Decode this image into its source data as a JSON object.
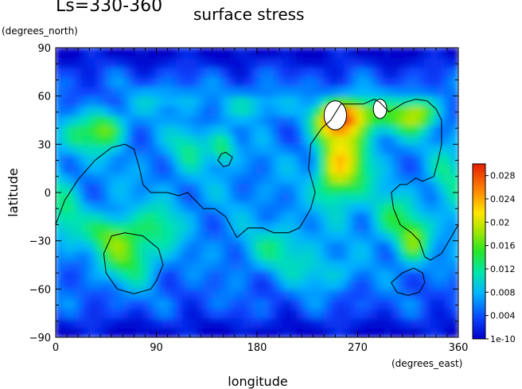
{
  "chart_data": {
    "type": "heatmap",
    "title": "Ls=330-360",
    "subtitle": "surface stress",
    "xlabel": "longitude",
    "ylabel": "latitude",
    "xunit": "(degrees_east)",
    "yunit": "(degrees_north)",
    "xlim": [
      0,
      360
    ],
    "ylim": [
      -90,
      90
    ],
    "xticks": [
      "0",
      "90",
      "180",
      "270",
      "360"
    ],
    "yticks": [
      "90",
      "60",
      "30",
      "0",
      "−30",
      "−60",
      "−90"
    ],
    "colorbar": {
      "labels": [
        "0.028",
        "0.024",
        "0.02",
        "0.016",
        "0.012",
        "0.008",
        "0.004",
        "1e-10"
      ],
      "min": 0,
      "max": 0.03
    },
    "hotspots": [
      {
        "lon": 250,
        "lat": 45,
        "amp": 0.018,
        "sx": 14,
        "sy": 8
      },
      {
        "lon": 270,
        "lat": 50,
        "amp": 0.014,
        "sx": 16,
        "sy": 7
      },
      {
        "lon": 262,
        "lat": 20,
        "amp": 0.013,
        "sx": 14,
        "sy": 16
      },
      {
        "lon": 248,
        "lat": 15,
        "amp": 0.009,
        "sx": 10,
        "sy": 14
      },
      {
        "lon": 325,
        "lat": 50,
        "amp": 0.014,
        "sx": 12,
        "sy": 7
      },
      {
        "lon": 305,
        "lat": 45,
        "amp": 0.007,
        "sx": 14,
        "sy": 8
      },
      {
        "lon": 45,
        "lat": 40,
        "amp": 0.012,
        "sx": 12,
        "sy": 8
      },
      {
        "lon": 20,
        "lat": 35,
        "amp": 0.006,
        "sx": 12,
        "sy": 8
      },
      {
        "lon": 150,
        "lat": 28,
        "amp": 0.009,
        "sx": 8,
        "sy": 7
      },
      {
        "lon": 120,
        "lat": 30,
        "amp": 0.006,
        "sx": 12,
        "sy": 10
      },
      {
        "lon": 65,
        "lat": -40,
        "amp": 0.01,
        "sx": 18,
        "sy": 12
      },
      {
        "lon": 50,
        "lat": -25,
        "amp": 0.008,
        "sx": 16,
        "sy": 8
      },
      {
        "lon": 95,
        "lat": -20,
        "amp": 0.006,
        "sx": 14,
        "sy": 10
      },
      {
        "lon": 320,
        "lat": -30,
        "amp": 0.012,
        "sx": 10,
        "sy": 10
      },
      {
        "lon": 300,
        "lat": -15,
        "amp": 0.007,
        "sx": 12,
        "sy": 10
      },
      {
        "lon": 200,
        "lat": -35,
        "amp": 0.006,
        "sx": 22,
        "sy": 10
      },
      {
        "lon": 240,
        "lat": -50,
        "amp": 0.005,
        "sx": 20,
        "sy": 8
      },
      {
        "lon": 180,
        "lat": 55,
        "amp": 0.006,
        "sx": 20,
        "sy": 6
      },
      {
        "lon": 100,
        "lat": 58,
        "amp": 0.005,
        "sx": 20,
        "sy": 6
      },
      {
        "lon": 10,
        "lat": -15,
        "amp": 0.006,
        "sx": 10,
        "sy": 12
      },
      {
        "lon": 350,
        "lat": 10,
        "amp": 0.005,
        "sx": 10,
        "sy": 14
      }
    ],
    "saturated": [
      {
        "lon": 250,
        "lat": 48,
        "rx": 10,
        "ry": 9
      },
      {
        "lon": 290,
        "lat": 52,
        "rx": 6,
        "ry": 6
      }
    ],
    "contours": [
      [
        [
          0,
          -20
        ],
        [
          8,
          -5
        ],
        [
          20,
          8
        ],
        [
          35,
          20
        ],
        [
          50,
          28
        ],
        [
          62,
          30
        ],
        [
          70,
          27
        ],
        [
          75,
          15
        ],
        [
          78,
          5
        ],
        [
          85,
          0
        ],
        [
          100,
          0
        ],
        [
          110,
          -2
        ],
        [
          118,
          0
        ],
        [
          125,
          -5
        ],
        [
          132,
          -10
        ],
        [
          142,
          -10
        ],
        [
          152,
          -15
        ],
        [
          162,
          -28
        ],
        [
          172,
          -22
        ],
        [
          185,
          -22
        ],
        [
          195,
          -25
        ],
        [
          208,
          -25
        ],
        [
          218,
          -22
        ],
        [
          228,
          -10
        ],
        [
          232,
          0
        ],
        [
          226,
          15
        ],
        [
          228,
          30
        ],
        [
          238,
          40
        ],
        [
          246,
          45
        ],
        [
          255,
          55
        ],
        [
          275,
          55
        ],
        [
          285,
          58
        ],
        [
          290,
          56
        ],
        [
          298,
          50
        ],
        [
          312,
          56
        ],
        [
          322,
          58
        ],
        [
          332,
          57
        ],
        [
          340,
          52
        ],
        [
          345,
          45
        ],
        [
          345,
          30
        ],
        [
          342,
          20
        ],
        [
          338,
          10
        ],
        [
          328,
          7
        ],
        [
          322,
          9
        ],
        [
          314,
          5
        ],
        [
          308,
          5
        ],
        [
          300,
          0
        ],
        [
          302,
          -10
        ],
        [
          308,
          -20
        ],
        [
          318,
          -25
        ],
        [
          325,
          -30
        ],
        [
          330,
          -40
        ],
        [
          335,
          -42
        ],
        [
          345,
          -38
        ],
        [
          360,
          -20
        ]
      ],
      [
        [
          85,
          -60
        ],
        [
          70,
          -63
        ],
        [
          55,
          -60
        ],
        [
          45,
          -50
        ],
        [
          43,
          -38
        ],
        [
          50,
          -27
        ],
        [
          62,
          -25
        ],
        [
          78,
          -27
        ],
        [
          92,
          -35
        ],
        [
          96,
          -45
        ],
        [
          90,
          -55
        ],
        [
          85,
          -60
        ]
      ],
      [
        [
          305,
          -62
        ],
        [
          300,
          -56
        ],
        [
          310,
          -50
        ],
        [
          320,
          -47
        ],
        [
          328,
          -50
        ],
        [
          330,
          -56
        ],
        [
          325,
          -62
        ],
        [
          315,
          -64
        ],
        [
          305,
          -62
        ]
      ],
      [
        [
          145,
          20
        ],
        [
          148,
          24
        ],
        [
          152,
          25
        ],
        [
          158,
          22
        ],
        [
          155,
          17
        ],
        [
          150,
          16
        ],
        [
          145,
          20
        ]
      ]
    ]
  }
}
